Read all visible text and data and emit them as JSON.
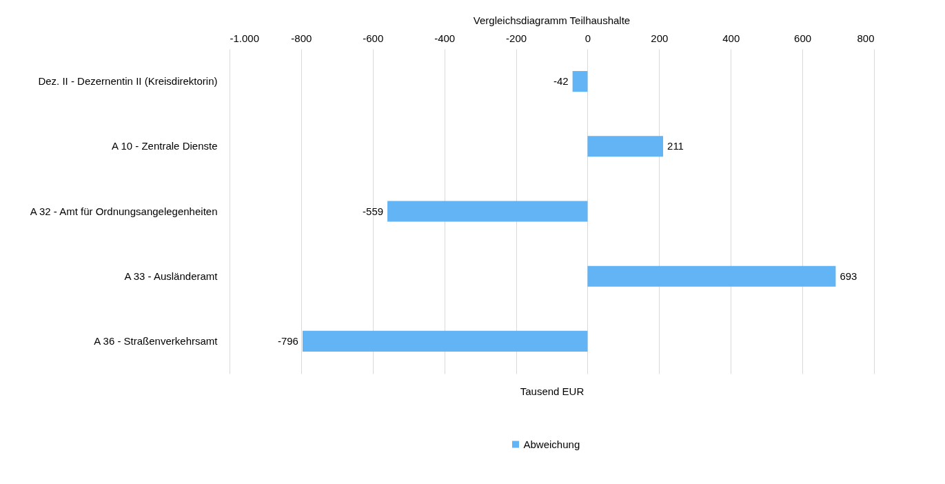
{
  "chart_data": {
    "type": "bar",
    "orientation": "horizontal",
    "title": "Vergleichsdiagramm Teilhaushalte",
    "xlabel": "Tausend EUR",
    "categories": [
      "Dez. II - Dezernentin II (Kreisdirektorin)",
      "A 10 - Zentrale Dienste",
      "A 32 - Amt für Ordnungsangelegenheiten",
      "A 33 - Ausländeramt",
      "A 36 - Straßenverkehrsamt"
    ],
    "series": [
      {
        "name": "Abweichung",
        "color": "#63b4f5",
        "values": [
          -42,
          211,
          -559,
          693,
          -796
        ]
      }
    ],
    "xlim": [
      -1000,
      800
    ],
    "xticks": [
      {
        "value": -1000,
        "label": "-1.000"
      },
      -800,
      -600,
      -400,
      -200,
      0,
      200,
      400,
      600,
      800
    ],
    "grid": "x",
    "legend": "bottom",
    "data_labels": true
  }
}
